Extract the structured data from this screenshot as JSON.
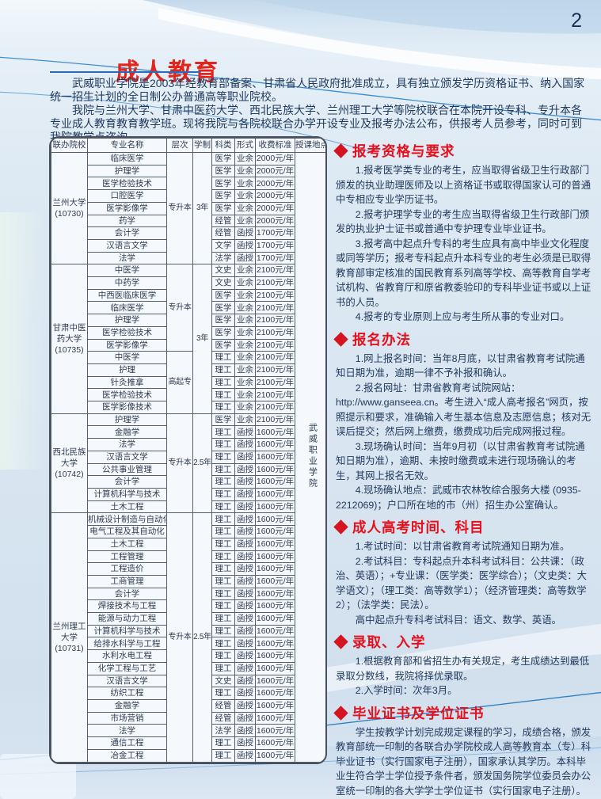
{
  "page": {
    "number": "2",
    "title": "成人教育"
  },
  "colors": {
    "accent_red": "#e3261d",
    "diamond_red": "#d41420",
    "underline_blue": "#2b6cb8",
    "line_blue": "#3e8ed0"
  },
  "intro": {
    "p1": "武威职业学院是2003年经教育部备案、甘肃省人民政府批准成立，具有独立颁发学历资格证书、纳入国家统一招生计划的全日制公办普通高等职业院校。",
    "p2": "我院与兰州大学、甘肃中医药大学、西北民族大学、兰州理工大学等院校联合在本院开设专科、专升本各专业成人教育教育教学班。现将我院与各院校联合办学开设专业及报考办法公布，供报考人员参考，同时可到我院教学点咨询。"
  },
  "table": {
    "headers": [
      "联办院校",
      "专业名称",
      "层次",
      "学制",
      "科类",
      "形式",
      "收费标准",
      "授课地点"
    ],
    "teaching_location": "武威职业学院",
    "groups": [
      {
        "college": "兰州大学",
        "code": "(10730)",
        "duration": "3年",
        "blocks": [
          {
            "level": "专升本",
            "rows": [
              {
                "major": "临床医学",
                "category": "医学",
                "form": "业余",
                "fee": "2000元/年"
              },
              {
                "major": "护理学",
                "category": "医学",
                "form": "业余",
                "fee": "2000元/年"
              },
              {
                "major": "医学检验技术",
                "category": "医学",
                "form": "业余",
                "fee": "2000元/年"
              },
              {
                "major": "口腔医学",
                "category": "医学",
                "form": "业余",
                "fee": "2000元/年"
              },
              {
                "major": "医学影像学",
                "category": "医学",
                "form": "业余",
                "fee": "2000元/年"
              },
              {
                "major": "药学",
                "category": "经管",
                "form": "业余",
                "fee": "2000元/年"
              },
              {
                "major": "会计学",
                "category": "经管",
                "form": "函授",
                "fee": "1700元/年"
              },
              {
                "major": "汉语言文学",
                "category": "文学",
                "form": "函授",
                "fee": "1700元/年"
              },
              {
                "major": "法学",
                "category": "法学",
                "form": "函授",
                "fee": "1700元/年"
              }
            ]
          }
        ]
      },
      {
        "college": "甘肃中医药大学",
        "code": "(10735)",
        "duration": "3年",
        "blocks": [
          {
            "level": "专升本",
            "rows": [
              {
                "major": "中医学",
                "category": "文史",
                "form": "业余",
                "fee": "2100元/年"
              },
              {
                "major": "中药学",
                "category": "文史",
                "form": "业余",
                "fee": "2100元/年"
              },
              {
                "major": "中西医临床医学",
                "category": "医学",
                "form": "业余",
                "fee": "2100元/年"
              },
              {
                "major": "临床医学",
                "category": "医学",
                "form": "业余",
                "fee": "2100元/年"
              },
              {
                "major": "护理学",
                "category": "医学",
                "form": "业余",
                "fee": "2100元/年"
              },
              {
                "major": "医学检验技术",
                "category": "医学",
                "form": "业余",
                "fee": "2100元/年"
              },
              {
                "major": "医学影像学",
                "category": "医学",
                "form": "业余",
                "fee": "2100元/年"
              }
            ]
          },
          {
            "level": "高起专",
            "rows": [
              {
                "major": "中医学",
                "category": "理工",
                "form": "业余",
                "fee": "2100元/年"
              },
              {
                "major": "护理",
                "category": "理工",
                "form": "业余",
                "fee": "2100元/年"
              },
              {
                "major": "针灸推拿",
                "category": "理工",
                "form": "业余",
                "fee": "2100元/年"
              },
              {
                "major": "医学检验技术",
                "category": "理工",
                "form": "业余",
                "fee": "2100元/年"
              },
              {
                "major": "医学影像技术",
                "category": "理工",
                "form": "业余",
                "fee": "2100元/年"
              }
            ]
          }
        ]
      },
      {
        "college": "西北民族大学",
        "code": "(10742)",
        "duration": "2.5年",
        "blocks": [
          {
            "level": "专升本",
            "rows": [
              {
                "major": "护理学",
                "category": "医学",
                "form": "业余",
                "fee": "2100元/年"
              },
              {
                "major": "金融学",
                "category": "理工",
                "form": "函授",
                "fee": "1600元/年"
              },
              {
                "major": "法学",
                "category": "理工",
                "form": "函授",
                "fee": "1600元/年"
              },
              {
                "major": "汉语言文学",
                "category": "理工",
                "form": "函授",
                "fee": "1600元/年"
              },
              {
                "major": "公共事业管理",
                "category": "理工",
                "form": "函授",
                "fee": "1600元/年"
              },
              {
                "major": "会计学",
                "category": "理工",
                "form": "函授",
                "fee": "1600元/年"
              },
              {
                "major": "计算机科学与技术",
                "category": "理工",
                "form": "函授",
                "fee": "1600元/年"
              },
              {
                "major": "土木工程",
                "category": "理工",
                "form": "函授",
                "fee": "1600元/年"
              }
            ]
          }
        ]
      },
      {
        "college": "兰州理工大学",
        "code": "(10731)",
        "duration": "2.5年",
        "blocks": [
          {
            "level": "专升本",
            "rows": [
              {
                "major": "机械设计制造与自动化",
                "category": "理工",
                "form": "函授",
                "fee": "1600元/年"
              },
              {
                "major": "电气工程及其自动化",
                "category": "理工",
                "form": "函授",
                "fee": "1600元/年"
              },
              {
                "major": "土木工程",
                "category": "理工",
                "form": "函授",
                "fee": "1600元/年"
              },
              {
                "major": "工程管理",
                "category": "理工",
                "form": "函授",
                "fee": "1600元/年"
              },
              {
                "major": "工程造价",
                "category": "理工",
                "form": "函授",
                "fee": "1600元/年"
              },
              {
                "major": "工商管理",
                "category": "理工",
                "form": "函授",
                "fee": "1600元/年"
              },
              {
                "major": "会计学",
                "category": "理工",
                "form": "函授",
                "fee": "1600元/年"
              },
              {
                "major": "焊接技术与工程",
                "category": "理工",
                "form": "函授",
                "fee": "1600元/年"
              },
              {
                "major": "能源与动力工程",
                "category": "理工",
                "form": "函授",
                "fee": "1600元/年"
              },
              {
                "major": "计算机科学与技术",
                "category": "理工",
                "form": "函授",
                "fee": "1600元/年"
              },
              {
                "major": "给排水科学与工程",
                "category": "理工",
                "form": "函授",
                "fee": "1600元/年"
              },
              {
                "major": "水利水电工程",
                "category": "理工",
                "form": "函授",
                "fee": "1600元/年"
              },
              {
                "major": "化学工程与工艺",
                "category": "理工",
                "form": "函授",
                "fee": "1600元/年"
              },
              {
                "major": "汉语言文学",
                "category": "文史",
                "form": "函授",
                "fee": "1600元/年"
              },
              {
                "major": "纺织工程",
                "category": "理工",
                "form": "函授",
                "fee": "1600元/年"
              },
              {
                "major": "金融学",
                "category": "经管",
                "form": "函授",
                "fee": "1600元/年"
              },
              {
                "major": "市场营销",
                "category": "经管",
                "form": "函授",
                "fee": "1600元/年"
              },
              {
                "major": "法学",
                "category": "法学",
                "form": "函授",
                "fee": "1600元/年"
              },
              {
                "major": "通信工程",
                "category": "理工",
                "form": "函授",
                "fee": "1600元/年"
              },
              {
                "major": "冶金工程",
                "category": "理工",
                "form": "函授",
                "fee": "1600元/年"
              }
            ]
          }
        ]
      }
    ]
  },
  "sections": [
    {
      "heading": "报考资格与要求",
      "paras": [
        "1.报考医学类专业的考生，应当取得省级卫生行政部门颁发的执业助理医师及以上资格证书或取得国家认可的普通中专相应专业学历证书。",
        "2.报考护理学专业的考生应当取得省级卫生行政部门颁发的执业护士证书或普通中专护理专业毕业证书。",
        "3.报考高中起点升专科的考生应具有高中毕业文化程度或同等学历；报考专科起点升本科专业的考生必须是已取得教育部审定核准的国民教育系列高等学校、高等教育自学考试机构、省教育厅和原省教委验印的专科毕业证书或以上证书的人员。",
        "4.报考的专业原则上应与考生所从事的专业对口。"
      ]
    },
    {
      "heading": "报名办法",
      "paras": [
        "1.网上报名时间：当年8月底，以甘肃省教育考试院通知日期为准，逾期一律不予补报和确认。",
        "2.报名网址：甘肃省教育考试院网站：http://www.ganseea.cn。考生进入“成人高考报名”网页，按照提示和要求，准确输入考生基本信息及志愿信息；核对无误后提交；然后网上缴费，缴费成功后完成网报过程。",
        "3.现场确认时间：当年9月初（以甘肃省教育考试院通知日期为准），逾期、未按时缴费或未进行现场确认的考生，其网上报名无效。",
        "4.现场确认地点：武威市农林牧综合服务大楼 (0935-2212069)；户口所在地的市（州）招生办公室确认。"
      ]
    },
    {
      "heading": "成人高考时间、科目",
      "paras": [
        "1.考试时间：以甘肃省教育考试院通知日期为准。",
        "2.考试科目：专科起点升本科考试科目：公共课：（政治、英语）；+专业课：（医学类：医学综合）；（文史类：大学语文）；（理工类：高等数学1）；（经济管理类：高等数学2）；（法学类：民法）。",
        "高中起点升专科考试科目：语文、数学、英语。"
      ]
    },
    {
      "heading": "录取、入学",
      "paras": [
        "1.根据教育部和省招生办有关规定，考生成绩达到最低录取分数线，我院将择优录取。",
        "2.入学时间：次年3月。"
      ]
    },
    {
      "heading": "毕业证书及学位证书",
      "paras": [
        "学生按教学计划完成规定课程的学习，成绩合格，颁发教育部统一印制的各联合办学院校成人高等教育本（专）科毕业证书（实行国家电子注册），国家承认其学历。本科毕业生符合学士学位授予条件者，颁发国务院学位委员会办公室统一印制的各大学学士学位证书（实行国家电子注册）。"
      ]
    }
  ]
}
